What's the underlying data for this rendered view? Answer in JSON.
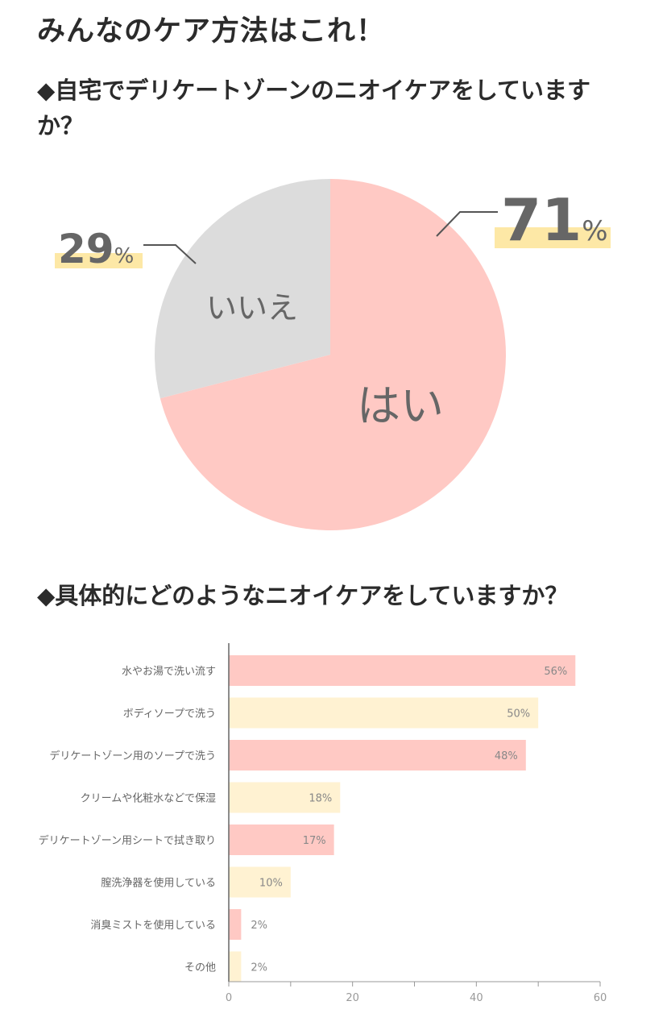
{
  "page": {
    "title": "みんなのケア方法はこれ！"
  },
  "questions": {
    "q1": "◆自宅でデリケートゾーンのニオイケアをしていますか？",
    "q2": "◆具体的にどのようなニオイケアをしていますか？"
  },
  "chart_data": [
    {
      "type": "pie",
      "slices": [
        {
          "label": "はい",
          "value": 71,
          "value_text": "71",
          "unit": "%",
          "color": "#ffc9c4"
        },
        {
          "label": "いいえ",
          "value": 29,
          "value_text": "29",
          "unit": "%",
          "color": "#dcdcdc"
        }
      ],
      "highlight_color": "#fde8a6"
    },
    {
      "type": "bar",
      "orientation": "horizontal",
      "categories": [
        "水やお湯で洗い流す",
        "ボディソープで洗う",
        "デリケートゾーン用のソープで洗う",
        "クリームや化粧水などで保湿",
        "デリケートゾーン用シートで拭き取り",
        "膣洗浄器を使用している",
        "消臭ミストを使用している",
        "その他"
      ],
      "values": [
        56,
        50,
        48,
        18,
        17,
        10,
        2,
        2
      ],
      "value_labels": [
        "56%",
        "50%",
        "48%",
        "18%",
        "17%",
        "10%",
        "2%",
        "2%"
      ],
      "bar_colors": [
        "#ffc9c4",
        "#fff2d2",
        "#ffc9c4",
        "#fff2d2",
        "#ffc9c4",
        "#fff2d2",
        "#ffc9c4",
        "#fff2d2"
      ],
      "xlim": [
        0,
        60
      ],
      "xticks": [
        0,
        20,
        40,
        60
      ],
      "grid": false
    }
  ]
}
